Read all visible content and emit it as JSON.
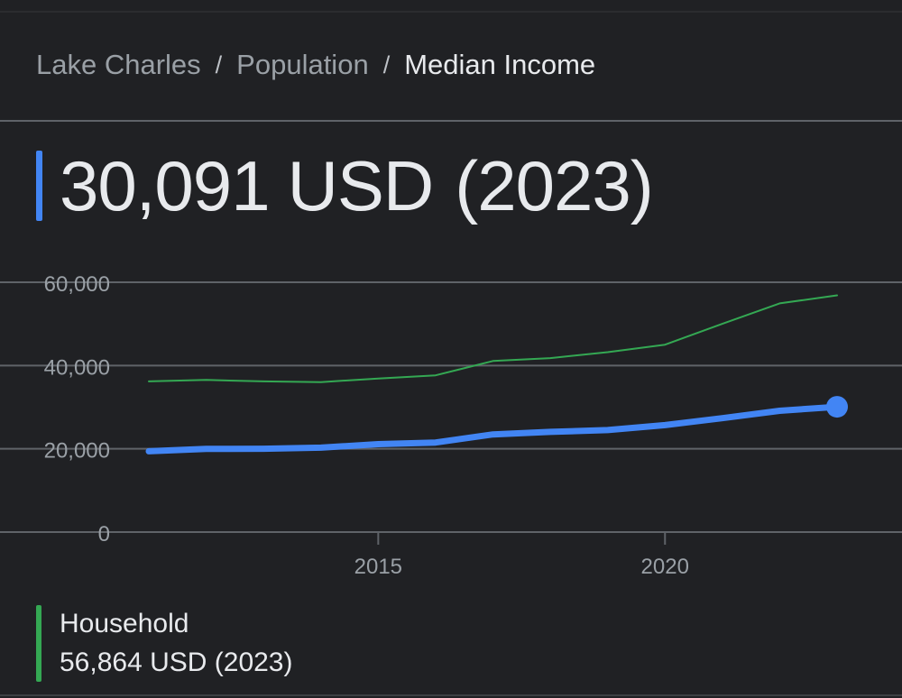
{
  "breadcrumb": {
    "items": [
      "Lake Charles",
      "Population"
    ],
    "separator": "/",
    "current": "Median Income"
  },
  "headline": {
    "value": "30,091",
    "unit": "USD",
    "year": "(2023)"
  },
  "legend": {
    "name": "Household",
    "value": "56,864 USD (2023)",
    "color": "#34a853"
  },
  "colors": {
    "background": "#202124",
    "accent": "#4285f4",
    "secondary": "#34a853",
    "grid": "#5f6368",
    "text": "#e8eaed",
    "muted": "#9aa0a6"
  },
  "chart_data": {
    "type": "line",
    "x_ticks": [
      2015,
      2020
    ],
    "y_ticks": [
      "0",
      "20,000",
      "40,000",
      "60,000"
    ],
    "ylim": [
      0,
      60000
    ],
    "grid": true,
    "series": [
      {
        "color": "#4285f4",
        "highlight_last": true,
        "points": [
          [
            2011,
            19418
          ],
          [
            2012,
            19963
          ],
          [
            2013,
            20010
          ],
          [
            2014,
            20280
          ],
          [
            2015,
            21118
          ],
          [
            2016,
            21504
          ],
          [
            2017,
            23461
          ],
          [
            2018,
            24067
          ],
          [
            2019,
            24495
          ],
          [
            2020,
            25696
          ],
          [
            2021,
            27364
          ],
          [
            2022,
            29142
          ],
          [
            2023,
            30091
          ]
        ]
      },
      {
        "name": "Household",
        "color": "#34a853",
        "points": [
          [
            2011,
            36200
          ],
          [
            2012,
            36546
          ],
          [
            2013,
            36185
          ],
          [
            2014,
            36020
          ],
          [
            2015,
            36886
          ],
          [
            2016,
            37639
          ],
          [
            2017,
            41087
          ],
          [
            2018,
            41778
          ],
          [
            2019,
            43211
          ],
          [
            2020,
            45017
          ],
          [
            2021,
            50005
          ],
          [
            2022,
            54927
          ],
          [
            2023,
            56864
          ]
        ]
      }
    ]
  }
}
